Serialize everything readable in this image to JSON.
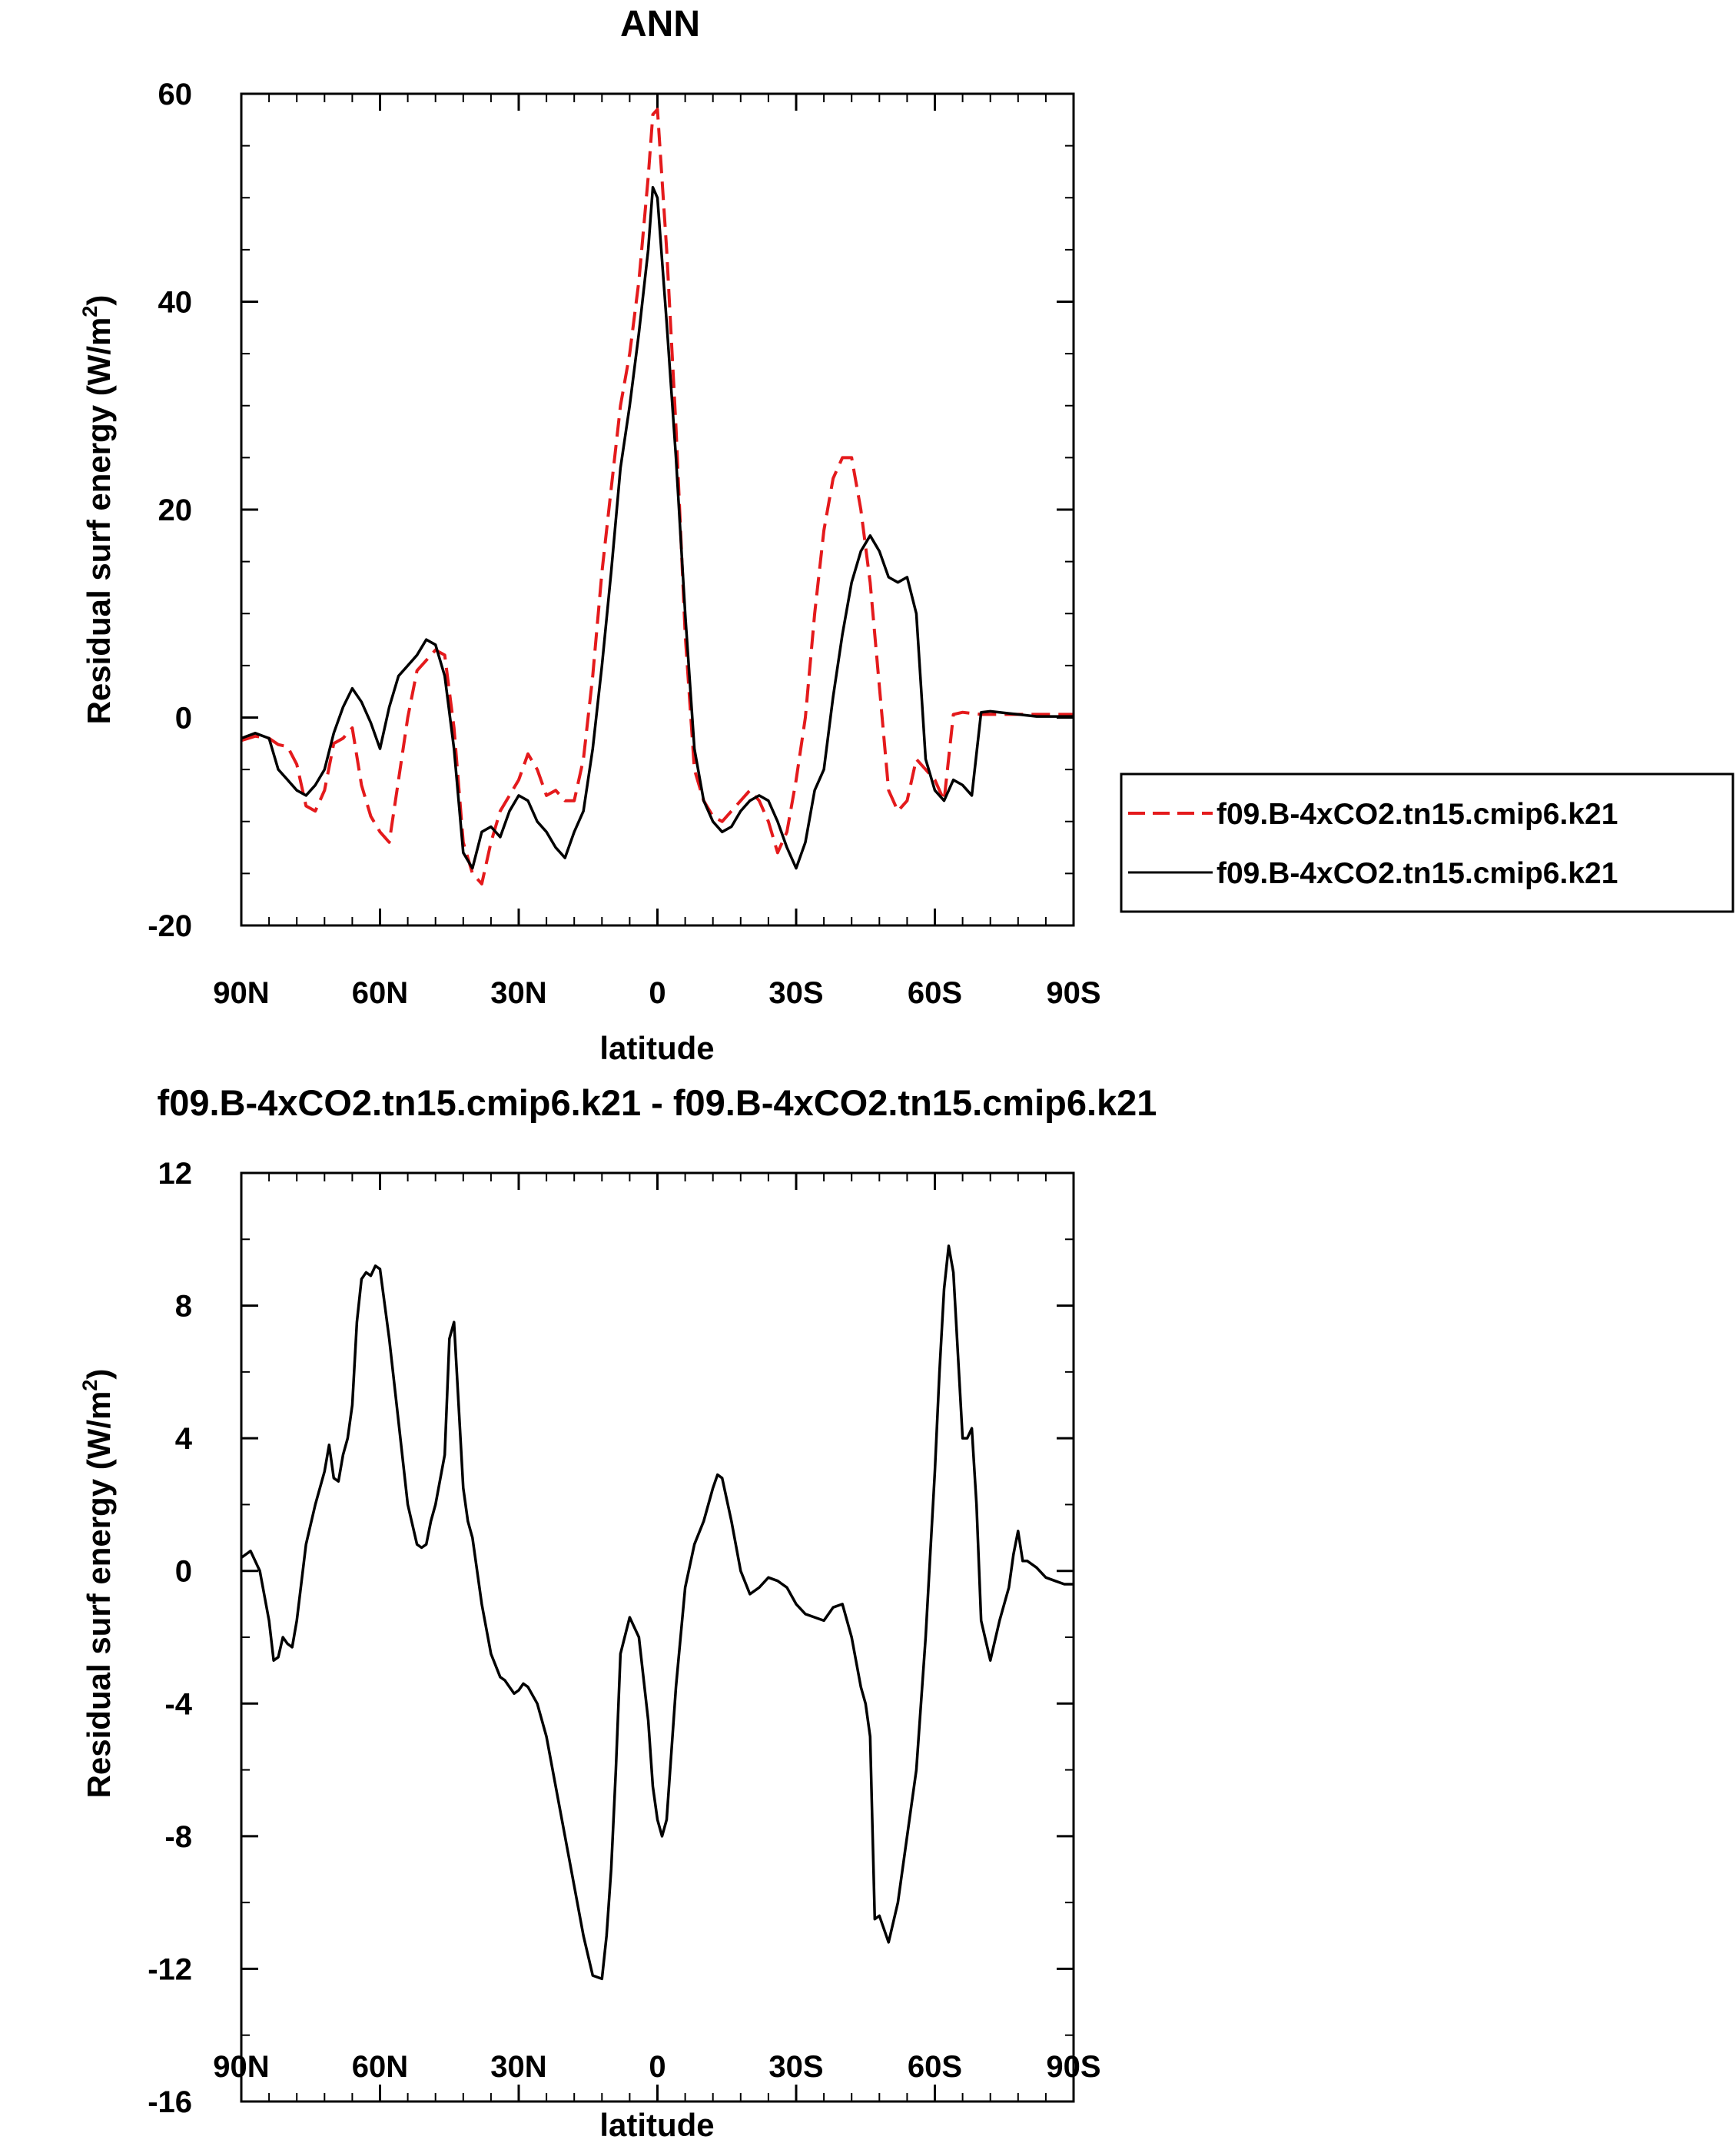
{
  "chart_data": [
    {
      "type": "line",
      "title": "ANN",
      "xlabel": "latitude",
      "ylabel": "Residual surf energy (W/m",
      "ylabel_sup": "2",
      "ylabel_close": ")",
      "xlim": [
        90,
        -90
      ],
      "ylim": [
        -20,
        60
      ],
      "xticks": [
        90,
        60,
        30,
        0,
        -30,
        -60,
        -90
      ],
      "xtick_labels": [
        "90N",
        "60N",
        "30N",
        "0",
        "30S",
        "60S",
        "90S"
      ],
      "yticks": [
        -20,
        0,
        20,
        40,
        60
      ],
      "ytick_labels": [
        "-20",
        "0",
        "20",
        "40",
        "60"
      ],
      "legend": "outside-right",
      "grid": false,
      "series": [
        {
          "name": "f09.B-4xCO2.tn15.cmip6.k21",
          "color": "#e41a1c",
          "dash": "dashed",
          "x": [
            90,
            87,
            84,
            82,
            80,
            78,
            76,
            74,
            72,
            70,
            68,
            66,
            64,
            62,
            60,
            58,
            56,
            54,
            52,
            50,
            48,
            46,
            44,
            42,
            40,
            38,
            36,
            34,
            32,
            30,
            28,
            26,
            24,
            22,
            20,
            18,
            16,
            14,
            12,
            10,
            8,
            6,
            4,
            2,
            1,
            0,
            -2,
            -4,
            -6,
            -8,
            -10,
            -12,
            -14,
            -16,
            -18,
            -20,
            -22,
            -24,
            -26,
            -28,
            -30,
            -32,
            -34,
            -36,
            -38,
            -40,
            -42,
            -44,
            -46,
            -48,
            -50,
            -52,
            -54,
            -56,
            -58,
            -60,
            -62,
            -64,
            -66,
            -68,
            -70,
            -72,
            -74,
            -76,
            -78,
            -80,
            -82,
            -84,
            -86,
            -88,
            -90
          ],
          "y": [
            -2.2,
            -1.8,
            -2.0,
            -2.6,
            -2.8,
            -4.5,
            -8.5,
            -9.0,
            -7.0,
            -2.5,
            -2.0,
            -1.0,
            -6.5,
            -9.5,
            -11.0,
            -12.0,
            -6.0,
            0.0,
            4.5,
            5.5,
            6.5,
            6.0,
            -1.0,
            -12.0,
            -15.0,
            -16.0,
            -12.0,
            -9.0,
            -7.5,
            -6.0,
            -3.5,
            -5.0,
            -7.5,
            -7.0,
            -8.0,
            -8.0,
            -4.0,
            4.0,
            14.0,
            22.0,
            30.0,
            35.0,
            42.0,
            52.0,
            58.0,
            58.5,
            45.0,
            28.0,
            8.0,
            -5.0,
            -8.0,
            -9.5,
            -10.0,
            -9.0,
            -8.0,
            -7.0,
            -8.0,
            -10.0,
            -13.0,
            -11.0,
            -6.0,
            0.0,
            10.0,
            18.0,
            23.0,
            25.0,
            25.0,
            20.0,
            13.0,
            3.0,
            -7.0,
            -9.0,
            -8.0,
            -4.0,
            -5.0,
            -6.0,
            -8.0,
            0.3,
            0.5,
            0.4,
            0.3,
            0.3,
            0.3,
            0.3,
            0.3,
            0.3,
            0.3,
            0.3,
            0.3,
            0.3,
            0.3
          ]
        },
        {
          "name": "f09.B-4xCO2.tn15.cmip6.k21",
          "color": "#000000",
          "dash": "solid",
          "x": [
            90,
            87,
            84,
            82,
            80,
            78,
            76,
            74,
            72,
            70,
            68,
            66,
            64,
            62,
            60,
            58,
            56,
            54,
            52,
            50,
            48,
            46,
            44,
            42,
            40,
            38,
            36,
            34,
            32,
            30,
            28,
            26,
            24,
            22,
            20,
            18,
            16,
            14,
            12,
            10,
            8,
            6,
            4,
            2,
            1,
            0,
            -2,
            -4,
            -6,
            -8,
            -10,
            -12,
            -14,
            -16,
            -18,
            -20,
            -22,
            -24,
            -26,
            -28,
            -30,
            -32,
            -34,
            -36,
            -38,
            -40,
            -42,
            -44,
            -46,
            -48,
            -50,
            -52,
            -54,
            -56,
            -58,
            -60,
            -62,
            -64,
            -66,
            -68,
            -70,
            -72,
            -74,
            -76,
            -78,
            -80,
            -82,
            -84,
            -86,
            -88,
            -90
          ],
          "y": [
            -2.0,
            -1.5,
            -2.0,
            -5.0,
            -6.0,
            -7.0,
            -7.5,
            -6.5,
            -5.0,
            -1.5,
            1.0,
            2.8,
            1.5,
            -0.5,
            -3.0,
            1.0,
            4.0,
            5.0,
            6.0,
            7.5,
            7.0,
            4.0,
            -3.0,
            -13.0,
            -14.5,
            -11.0,
            -10.5,
            -11.5,
            -9.0,
            -7.5,
            -8.0,
            -10.0,
            -11.0,
            -12.5,
            -13.5,
            -11.0,
            -9.0,
            -3.0,
            5.0,
            14.0,
            24.0,
            30.0,
            37.0,
            45.0,
            51.0,
            50.0,
            38.0,
            25.0,
            10.0,
            -3.0,
            -8.0,
            -10.0,
            -11.0,
            -10.5,
            -9.0,
            -8.0,
            -7.5,
            -8.0,
            -10.0,
            -12.5,
            -14.5,
            -12.0,
            -7.0,
            -5.0,
            2.0,
            8.0,
            13.0,
            16.0,
            17.5,
            16.0,
            13.5,
            13.0,
            13.5,
            10.0,
            -4.0,
            -7.0,
            -8.0,
            -6.0,
            -6.5,
            -7.5,
            0.5,
            0.6,
            0.5,
            0.4,
            0.3,
            0.2,
            0.1,
            0.1,
            0.1,
            0.1,
            0.1
          ]
        }
      ]
    },
    {
      "type": "line",
      "title": "f09.B-4xCO2.tn15.cmip6.k21 - f09.B-4xCO2.tn15.cmip6.k21",
      "xlabel": "latitude",
      "ylabel": "Residual surf energy (W/m",
      "ylabel_sup": "2",
      "ylabel_close": ")",
      "xlim": [
        90,
        -90
      ],
      "ylim": [
        -16,
        12
      ],
      "xticks": [
        90,
        60,
        30,
        0,
        -30,
        -60,
        -90
      ],
      "xtick_labels": [
        "90N",
        "60N",
        "30N",
        "0",
        "30S",
        "60S",
        "90S"
      ],
      "yticks": [
        -16,
        -12,
        -8,
        -4,
        0,
        4,
        8,
        12
      ],
      "ytick_labels": [
        "-16",
        "-12",
        "-8",
        "-4",
        "0",
        "4",
        "8",
        "12"
      ],
      "grid": false,
      "series": [
        {
          "color": "#000000",
          "dash": "solid",
          "x": [
            90,
            88,
            86,
            84,
            83,
            82,
            81,
            80,
            79,
            78,
            76,
            74,
            72,
            71,
            70,
            69,
            68,
            67,
            66,
            65,
            64,
            63,
            62,
            61,
            60,
            58,
            56,
            54,
            52,
            51,
            50,
            49,
            48,
            46,
            45,
            44,
            43,
            42,
            41,
            40,
            38,
            36,
            34,
            33,
            32,
            31,
            30,
            29,
            28,
            26,
            24,
            22,
            20,
            18,
            16,
            14,
            12,
            11,
            10,
            9,
            8,
            6,
            4,
            2,
            1,
            0,
            -1,
            -2,
            -4,
            -6,
            -8,
            -10,
            -12,
            -13,
            -14,
            -16,
            -18,
            -20,
            -22,
            -24,
            -26,
            -28,
            -30,
            -32,
            -34,
            -36,
            -38,
            -40,
            -42,
            -44,
            -45,
            -46,
            -47,
            -48,
            -50,
            -52,
            -54,
            -56,
            -58,
            -60,
            -61,
            -62,
            -63,
            -64,
            -65,
            -66,
            -67,
            -68,
            -69,
            -70,
            -72,
            -74,
            -76,
            -77,
            -78,
            -79,
            -80,
            -82,
            -84,
            -86,
            -88,
            -90
          ],
          "y": [
            0.4,
            0.6,
            0.0,
            -1.5,
            -2.7,
            -2.6,
            -2.0,
            -2.2,
            -2.3,
            -1.5,
            0.8,
            2.0,
            3.0,
            3.8,
            2.8,
            2.7,
            3.5,
            4.0,
            5.0,
            7.5,
            8.8,
            9.0,
            8.9,
            9.2,
            9.1,
            7.0,
            4.5,
            2.0,
            0.8,
            0.7,
            0.8,
            1.5,
            2.0,
            3.5,
            7.0,
            7.5,
            5.0,
            2.5,
            1.5,
            1.0,
            -1.0,
            -2.5,
            -3.2,
            -3.3,
            -3.5,
            -3.7,
            -3.6,
            -3.4,
            -3.5,
            -4.0,
            -5.0,
            -6.5,
            -8.0,
            -9.5,
            -11.0,
            -12.2,
            -12.3,
            -11.0,
            -9.0,
            -6.0,
            -2.5,
            -1.4,
            -2.0,
            -4.5,
            -6.5,
            -7.5,
            -8.0,
            -7.5,
            -3.5,
            -0.5,
            0.8,
            1.5,
            2.5,
            2.9,
            2.8,
            1.5,
            0.0,
            -0.7,
            -0.5,
            -0.2,
            -0.3,
            -0.5,
            -1.0,
            -1.3,
            -1.4,
            -1.5,
            -1.1,
            -1.0,
            -2.0,
            -3.5,
            -4.0,
            -5.0,
            -10.5,
            -10.4,
            -11.2,
            -10.0,
            -8.0,
            -6.0,
            -2.0,
            3.0,
            6.0,
            8.5,
            9.8,
            9.0,
            6.5,
            4.0,
            4.0,
            4.3,
            2.0,
            -1.5,
            -2.7,
            -1.5,
            -0.5,
            0.5,
            1.2,
            0.3,
            0.3,
            0.1,
            -0.2,
            -0.3,
            -0.4,
            -0.4
          ]
        }
      ]
    }
  ]
}
